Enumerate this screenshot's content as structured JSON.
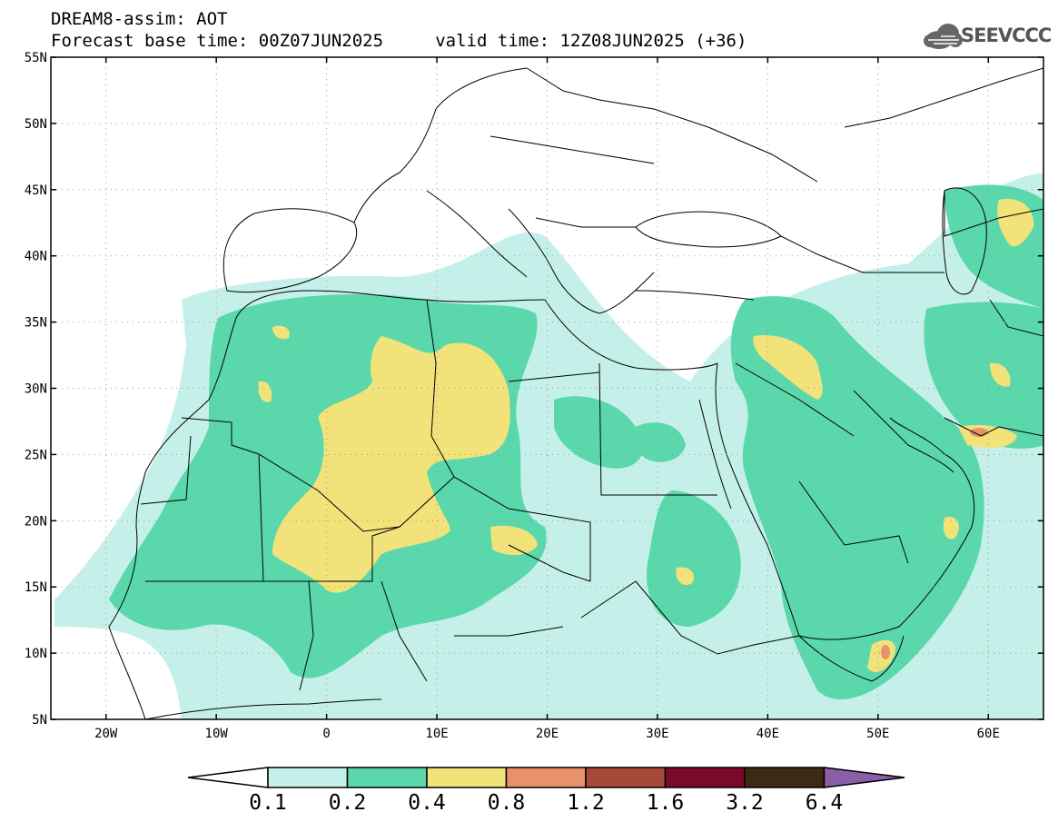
{
  "header": {
    "title_line1": "DREAM8-assim: AOT",
    "title_line2": "Forecast base time: 00Z07JUN2025     valid time: 12Z08JUN2025 (+36)"
  },
  "logo": {
    "text": "SEEVCCC",
    "icon": "cloud-icon"
  },
  "map": {
    "variable": "Aerosol optical thickness",
    "lon_range": [
      -25,
      65
    ],
    "lat_range": [
      5,
      55
    ],
    "lat_ticks": [
      {
        "value": 55,
        "label": "55N"
      },
      {
        "value": 50,
        "label": "50N"
      },
      {
        "value": 45,
        "label": "45N"
      },
      {
        "value": 40,
        "label": "40N"
      },
      {
        "value": 35,
        "label": "35N"
      },
      {
        "value": 30,
        "label": "30N"
      },
      {
        "value": 25,
        "label": "25N"
      },
      {
        "value": 20,
        "label": "20N"
      },
      {
        "value": 15,
        "label": "15N"
      },
      {
        "value": 10,
        "label": "10N"
      },
      {
        "value": 5,
        "label": "5N"
      }
    ],
    "lon_ticks": [
      {
        "value": -20,
        "label": "20W"
      },
      {
        "value": -10,
        "label": "10W"
      },
      {
        "value": 0,
        "label": "0"
      },
      {
        "value": 10,
        "label": "10E"
      },
      {
        "value": 20,
        "label": "20E"
      },
      {
        "value": 30,
        "label": "30E"
      },
      {
        "value": 40,
        "label": "40E"
      },
      {
        "value": 50,
        "label": "50E"
      },
      {
        "value": 60,
        "label": "60E"
      }
    ]
  },
  "colorbar": {
    "boundaries": [
      "0.1",
      "0.2",
      "0.4",
      "0.8",
      "1.2",
      "1.6",
      "3.2",
      "6.4"
    ],
    "colors": [
      "#c5f0ea",
      "#5ad8ab",
      "#f2e27a",
      "#e8916b",
      "#a8483a",
      "#7a0a2a",
      "#3d2a14"
    ],
    "under_color": "#ffffff",
    "over_color": "#8b5fa8"
  }
}
